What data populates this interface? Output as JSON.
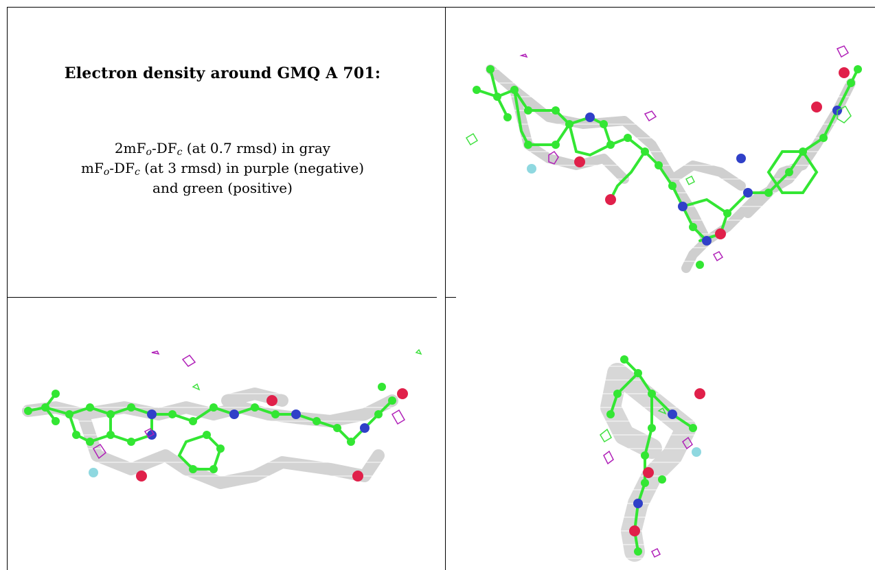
{
  "header": {
    "title": "Electron density around GMQ A 701:"
  },
  "legend": {
    "line1": {
      "pre": "2mF",
      "sub1": "o",
      "mid": "-DF",
      "sub2": "c",
      "post": " (at 0.7 rmsd) in gray"
    },
    "line2": {
      "pre": "mF",
      "sub1": "o",
      "mid": "-DF",
      "sub2": "c",
      "post": " (at 3 rmsd) in purple (negative)"
    },
    "line3": "and green (positive)"
  },
  "colors": {
    "mesh": "#a8a8a8",
    "carbon": "#33e633",
    "nitrogen": "#3040c8",
    "oxygen": "#e0204a",
    "fluorine": "#8fd8e0",
    "negative": "#b020b8",
    "positive": "#40e040"
  },
  "panels": [
    {
      "name": "view-top-right",
      "icon": "ligand-density-icon"
    },
    {
      "name": "view-bottom-left",
      "icon": "ligand-density-icon"
    },
    {
      "name": "view-bottom-right",
      "icon": "ligand-density-icon"
    }
  ]
}
